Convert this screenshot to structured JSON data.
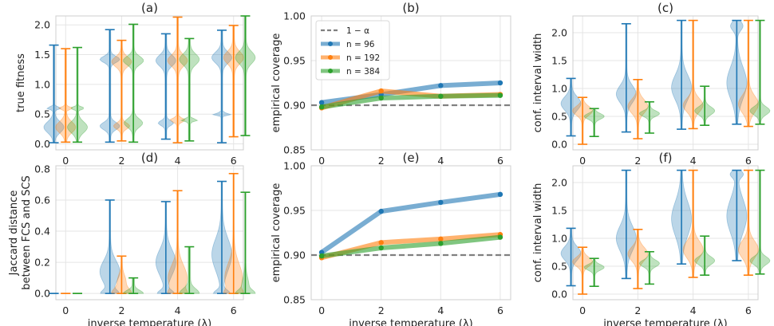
{
  "colors": {
    "blue": "#1f77b4",
    "orange": "#ff7f0e",
    "green": "#2ca02c",
    "ref": "#808080"
  },
  "chart_data": [
    {
      "id": "a",
      "type": "violin",
      "title": "(a)",
      "xlabel": "",
      "ylabel": "true fitness",
      "categories": [
        0,
        2,
        4,
        6
      ],
      "xticks": [
        "0",
        "2",
        "4",
        "6"
      ],
      "ylim": [
        -0.1,
        2.15
      ],
      "yticks": [
        "0.0",
        "0.5",
        "1.0",
        "1.5",
        "2.0"
      ],
      "grid": true,
      "series": [
        {
          "name": "n = 96",
          "color": "blue",
          "violins": [
            {
              "min": 0.02,
              "max": 1.66,
              "modes": [
                [
                  0.28,
                  0.09,
                  0.22
                ],
                [
                  0.6,
                  0.02,
                  0.15
                ]
              ]
            },
            {
              "min": 0.03,
              "max": 1.92,
              "modes": [
                [
                  0.3,
                  0.06,
                  0.2
                ],
                [
                  1.42,
                  0.05,
                  0.2
                ]
              ]
            },
            {
              "min": 0.08,
              "max": 1.85,
              "modes": [
                [
                  1.4,
                  0.09,
                  0.2
                ],
                [
                  0.35,
                  0.04,
                  0.15
                ]
              ]
            },
            {
              "min": 0.02,
              "max": 1.91,
              "modes": [
                [
                  1.45,
                  0.09,
                  0.2
                ],
                [
                  0.5,
                  0.015,
                  0.2
                ]
              ]
            }
          ]
        },
        {
          "name": "n = 192",
          "color": "orange",
          "violins": [
            {
              "min": 0.03,
              "max": 1.6,
              "modes": [
                [
                  0.28,
                  0.09,
                  0.22
                ],
                [
                  0.6,
                  0.02,
                  0.15
                ]
              ]
            },
            {
              "min": 0.05,
              "max": 1.74,
              "modes": [
                [
                  1.38,
                  0.08,
                  0.25
                ],
                [
                  0.3,
                  0.05,
                  0.2
                ]
              ]
            },
            {
              "min": 0.02,
              "max": 2.13,
              "modes": [
                [
                  1.4,
                  0.09,
                  0.2
                ],
                [
                  0.4,
                  0.03,
                  0.15
                ]
              ]
            },
            {
              "min": 0.12,
              "max": 1.99,
              "modes": [
                [
                  1.45,
                  0.1,
                  0.2
                ]
              ]
            }
          ]
        },
        {
          "name": "n = 384",
          "color": "green",
          "violins": [
            {
              "min": 0.03,
              "max": 1.62,
              "modes": [
                [
                  0.28,
                  0.09,
                  0.22
                ],
                [
                  0.6,
                  0.02,
                  0.15
                ]
              ]
            },
            {
              "min": 0.03,
              "max": 2.01,
              "modes": [
                [
                  1.4,
                  0.07,
                  0.22
                ],
                [
                  0.35,
                  0.07,
                  0.2
                ]
              ]
            },
            {
              "min": 0.05,
              "max": 1.77,
              "modes": [
                [
                  1.42,
                  0.09,
                  0.18
                ],
                [
                  0.4,
                  0.02,
                  0.15
                ]
              ]
            },
            {
              "min": 0.14,
              "max": 2.15,
              "modes": [
                [
                  1.45,
                  0.1,
                  0.2
                ]
              ]
            }
          ]
        }
      ]
    },
    {
      "id": "b",
      "type": "line",
      "title": "(b)",
      "xlabel": "",
      "ylabel": "empirical coverage",
      "x": [
        0,
        2,
        4,
        6
      ],
      "xticks": [
        "0",
        "2",
        "4",
        "6"
      ],
      "ylim": [
        0.85,
        1.0
      ],
      "yticks": [
        "0.85",
        "0.90",
        "0.95",
        "1.00"
      ],
      "grid": true,
      "reference": {
        "label": "1 − α",
        "value": 0.9
      },
      "legend": {
        "location": "upper-left",
        "entries": [
          "1 − α",
          "n = 96",
          "n = 192",
          "n = 384"
        ]
      },
      "series": [
        {
          "name": "n = 96",
          "color": "blue",
          "values": [
            0.903,
            0.912,
            0.922,
            0.925
          ]
        },
        {
          "name": "n = 192",
          "color": "orange",
          "values": [
            0.897,
            0.916,
            0.91,
            0.912
          ]
        },
        {
          "name": "n = 384",
          "color": "green",
          "values": [
            0.898,
            0.908,
            0.91,
            0.911
          ]
        }
      ]
    },
    {
      "id": "c",
      "type": "violin",
      "title": "(c)",
      "xlabel": "",
      "ylabel": "conf. interval width",
      "categories": [
        0,
        2,
        4,
        6
      ],
      "xticks": [
        "0",
        "2",
        "4",
        "6"
      ],
      "ylim": [
        -0.1,
        2.3
      ],
      "yticks": [
        "0.0",
        "0.5",
        "1.0",
        "1.5",
        "2.0"
      ],
      "grid": true,
      "series": [
        {
          "name": "n = 96",
          "color": "blue",
          "violins": [
            {
              "min": 0.15,
              "max": 1.18,
              "modes": [
                [
                  0.73,
                  0.12,
                  0.25
                ]
              ]
            },
            {
              "min": 0.22,
              "max": 2.16,
              "modes": [
                [
                  0.9,
                  0.15,
                  0.25
                ]
              ]
            },
            {
              "min": 0.27,
              "max": 2.22,
              "modes": [
                [
                  1.02,
                  0.22,
                  0.25
                ]
              ]
            },
            {
              "min": 0.36,
              "max": 2.22,
              "modes": [
                [
                  1.1,
                  0.28,
                  0.25
                ],
                [
                  2.12,
                  0.08,
                  0.15
                ]
              ]
            }
          ]
        },
        {
          "name": "n = 192",
          "color": "orange",
          "violins": [
            {
              "min": 0.0,
              "max": 0.84,
              "modes": [
                [
                  0.6,
                  0.08,
                  0.25
                ]
              ]
            },
            {
              "min": 0.1,
              "max": 1.16,
              "modes": [
                [
                  0.68,
                  0.12,
                  0.25
                ]
              ]
            },
            {
              "min": 0.28,
              "max": 2.22,
              "modes": [
                [
                  0.7,
                  0.12,
                  0.25
                ]
              ]
            },
            {
              "min": 0.32,
              "max": 2.22,
              "modes": [
                [
                  0.72,
                  0.15,
                  0.25
                ]
              ]
            }
          ]
        },
        {
          "name": "n = 384",
          "color": "green",
          "violins": [
            {
              "min": 0.14,
              "max": 0.64,
              "modes": [
                [
                  0.5,
                  0.05,
                  0.25
                ]
              ]
            },
            {
              "min": 0.2,
              "max": 0.76,
              "modes": [
                [
                  0.55,
                  0.05,
                  0.25
                ]
              ]
            },
            {
              "min": 0.34,
              "max": 1.04,
              "modes": [
                [
                  0.6,
                  0.07,
                  0.25
                ]
              ]
            },
            {
              "min": 0.36,
              "max": 2.22,
              "modes": [
                [
                  0.6,
                  0.07,
                  0.25
                ]
              ]
            }
          ]
        }
      ]
    },
    {
      "id": "d",
      "type": "violin",
      "title": "(d)",
      "xlabel": "inverse temperature (λ)",
      "ylabel": "Jaccard distance between FCS and SCS",
      "ylabel_lines": [
        "Jaccard distance",
        "between FCS and SCS"
      ],
      "categories": [
        0,
        2,
        4,
        6
      ],
      "xticks": [
        "0",
        "2",
        "4",
        "6"
      ],
      "ylim": [
        -0.04,
        0.82
      ],
      "yticks": [
        "0.0",
        "0.2",
        "0.4",
        "0.6",
        "0.8"
      ],
      "grid": true,
      "series": [
        {
          "name": "n = 96",
          "color": "blue",
          "violins": [
            {
              "min": 0.0,
              "max": 0.0,
              "modes": []
            },
            {
              "min": 0.0,
              "max": 0.6,
              "modes": [
                [
                  0.14,
                  0.07,
                  0.25
                ],
                [
                  0.0,
                  0.02,
                  0.2
                ]
              ]
            },
            {
              "min": 0.0,
              "max": 0.59,
              "modes": [
                [
                  0.2,
                  0.08,
                  0.25
                ],
                [
                  0.0,
                  0.02,
                  0.2
                ]
              ]
            },
            {
              "min": 0.0,
              "max": 0.72,
              "modes": [
                [
                  0.25,
                  0.1,
                  0.25
                ],
                [
                  0.0,
                  0.02,
                  0.2
                ]
              ]
            }
          ]
        },
        {
          "name": "n = 192",
          "color": "orange",
          "violins": [
            {
              "min": 0.0,
              "max": 0.0,
              "modes": []
            },
            {
              "min": 0.0,
              "max": 0.24,
              "modes": [
                [
                  0.0,
                  0.03,
                  0.25
                ],
                [
                  0.08,
                  0.04,
                  0.1
                ]
              ]
            },
            {
              "min": 0.0,
              "max": 0.66,
              "modes": [
                [
                  0.1,
                  0.08,
                  0.25
                ],
                [
                  0.0,
                  0.02,
                  0.15
                ]
              ]
            },
            {
              "min": 0.0,
              "max": 0.77,
              "modes": [
                [
                  0.1,
                  0.09,
                  0.25
                ],
                [
                  0.0,
                  0.02,
                  0.15
                ]
              ]
            }
          ]
        },
        {
          "name": "n = 384",
          "color": "green",
          "violins": [
            {
              "min": 0.0,
              "max": 0.0,
              "modes": []
            },
            {
              "min": 0.0,
              "max": 0.1,
              "modes": [
                [
                  0.0,
                  0.02,
                  0.15
                ]
              ]
            },
            {
              "min": 0.0,
              "max": 0.3,
              "modes": [
                [
                  0.0,
                  0.03,
                  0.15
                ]
              ]
            },
            {
              "min": 0.0,
              "max": 0.65,
              "modes": [
                [
                  0.0,
                  0.02,
                  0.25
                ],
                [
                  0.05,
                  0.05,
                  0.1
                ]
              ]
            }
          ]
        }
      ]
    },
    {
      "id": "e",
      "type": "line",
      "title": "(e)",
      "xlabel": "inverse temperature (λ)",
      "ylabel": "empirical coverage",
      "x": [
        0,
        2,
        4,
        6
      ],
      "xticks": [
        "0",
        "2",
        "4",
        "6"
      ],
      "ylim": [
        0.85,
        1.0
      ],
      "yticks": [
        "0.85",
        "0.90",
        "0.95",
        "1.00"
      ],
      "grid": true,
      "reference": {
        "label": "1 − α",
        "value": 0.9
      },
      "series": [
        {
          "name": "n = 96",
          "color": "blue",
          "values": [
            0.903,
            0.949,
            0.959,
            0.968
          ]
        },
        {
          "name": "n = 192",
          "color": "orange",
          "values": [
            0.897,
            0.914,
            0.918,
            0.923
          ]
        },
        {
          "name": "n = 384",
          "color": "green",
          "values": [
            0.899,
            0.908,
            0.913,
            0.92
          ]
        }
      ]
    },
    {
      "id": "f",
      "type": "violin",
      "title": "(f)",
      "xlabel": "inverse temperature (λ)",
      "ylabel": "conf. interval width",
      "categories": [
        0,
        2,
        4,
        6
      ],
      "xticks": [
        "0",
        "2",
        "4",
        "6"
      ],
      "ylim": [
        -0.1,
        2.3
      ],
      "yticks": [
        "0.0",
        "0.5",
        "1.0",
        "1.5",
        "2.0"
      ],
      "grid": true,
      "series": [
        {
          "name": "n = 96",
          "color": "blue",
          "violins": [
            {
              "min": 0.15,
              "max": 1.18,
              "modes": [
                [
                  0.73,
                  0.12,
                  0.25
                ]
              ]
            },
            {
              "min": 0.28,
              "max": 2.22,
              "modes": [
                [
                  1.0,
                  0.22,
                  0.25
                ]
              ]
            },
            {
              "min": 0.54,
              "max": 2.22,
              "modes": [
                [
                  1.35,
                  0.3,
                  0.25
                ]
              ]
            },
            {
              "min": 0.6,
              "max": 2.22,
              "modes": [
                [
                  1.4,
                  0.3,
                  0.25
                ],
                [
                  2.15,
                  0.06,
                  0.15
                ]
              ]
            }
          ]
        },
        {
          "name": "n = 192",
          "color": "orange",
          "violins": [
            {
              "min": 0.0,
              "max": 0.84,
              "modes": [
                [
                  0.58,
                  0.08,
                  0.25
                ]
              ]
            },
            {
              "min": 0.1,
              "max": 1.16,
              "modes": [
                [
                  0.72,
                  0.12,
                  0.25
                ]
              ]
            },
            {
              "min": 0.3,
              "max": 2.22,
              "modes": [
                [
                  0.8,
                  0.15,
                  0.25
                ]
              ]
            },
            {
              "min": 0.34,
              "max": 2.22,
              "modes": [
                [
                  0.8,
                  0.15,
                  0.25
                ]
              ]
            }
          ]
        },
        {
          "name": "n = 384",
          "color": "green",
          "violins": [
            {
              "min": 0.14,
              "max": 0.64,
              "modes": [
                [
                  0.48,
                  0.05,
                  0.25
                ]
              ]
            },
            {
              "min": 0.18,
              "max": 0.76,
              "modes": [
                [
                  0.55,
                  0.06,
                  0.25
                ]
              ]
            },
            {
              "min": 0.34,
              "max": 1.04,
              "modes": [
                [
                  0.6,
                  0.07,
                  0.25
                ]
              ]
            },
            {
              "min": 0.36,
              "max": 2.22,
              "modes": [
                [
                  0.6,
                  0.07,
                  0.25
                ]
              ]
            }
          ]
        }
      ]
    }
  ]
}
